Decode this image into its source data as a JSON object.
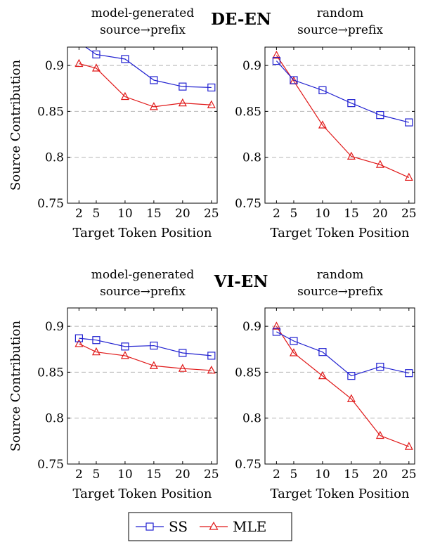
{
  "sections": [
    {
      "title": "DE-EN",
      "left_subtitle": [
        "model-generated",
        "source→prefix"
      ],
      "right_subtitle": [
        "random",
        "source→prefix"
      ]
    },
    {
      "title": "VI-EN",
      "left_subtitle": [
        "model-generated",
        "source→prefix"
      ],
      "right_subtitle": [
        "random",
        "source→prefix"
      ]
    }
  ],
  "legend": {
    "entries": [
      {
        "label": "SS",
        "color": "#2020d0",
        "marker": "square"
      },
      {
        "label": "MLE",
        "color": "#e01818",
        "marker": "triangle"
      }
    ]
  },
  "chart_data": [
    {
      "type": "line",
      "section": "DE-EN",
      "subtitle": "model-generated source→prefix",
      "xlabel": "Target Token Position",
      "ylabel": "Source Contribution",
      "x": [
        2,
        5,
        10,
        15,
        20,
        25
      ],
      "ylim": [
        0.75,
        0.92
      ],
      "xticks": [
        "2",
        "5",
        "10",
        "15",
        "20",
        "25"
      ],
      "yticks": [
        "0.75",
        "0.8",
        "0.85",
        "0.9"
      ],
      "grid": "horizontal dashed",
      "series": [
        {
          "name": "SS",
          "color": "#2020d0",
          "marker": "square",
          "values": [
            0.925,
            0.912,
            0.907,
            0.884,
            0.877,
            0.876
          ]
        },
        {
          "name": "MLE",
          "color": "#e01818",
          "marker": "triangle",
          "values": [
            0.902,
            0.897,
            0.866,
            0.855,
            0.859,
            0.857
          ]
        }
      ]
    },
    {
      "type": "line",
      "section": "DE-EN",
      "subtitle": "random source→prefix",
      "xlabel": "Target Token Position",
      "ylabel": "",
      "x": [
        2,
        5,
        10,
        15,
        20,
        25
      ],
      "ylim": [
        0.75,
        0.92
      ],
      "xticks": [
        "2",
        "5",
        "10",
        "15",
        "20",
        "25"
      ],
      "yticks": [
        "0.75",
        "0.8",
        "0.85",
        "0.9"
      ],
      "grid": "horizontal dashed",
      "series": [
        {
          "name": "SS",
          "color": "#2020d0",
          "marker": "square",
          "values": [
            0.905,
            0.884,
            0.873,
            0.859,
            0.846,
            0.838
          ]
        },
        {
          "name": "MLE",
          "color": "#e01818",
          "marker": "triangle",
          "values": [
            0.911,
            0.883,
            0.835,
            0.801,
            0.792,
            0.778
          ]
        }
      ]
    },
    {
      "type": "line",
      "section": "VI-EN",
      "subtitle": "model-generated source→prefix",
      "xlabel": "Target Token Position",
      "ylabel": "Source Contribution",
      "x": [
        2,
        5,
        10,
        15,
        20,
        25
      ],
      "ylim": [
        0.75,
        0.92
      ],
      "xticks": [
        "2",
        "5",
        "10",
        "15",
        "20",
        "25"
      ],
      "yticks": [
        "0.75",
        "0.8",
        "0.85",
        "0.9"
      ],
      "grid": "horizontal dashed",
      "series": [
        {
          "name": "SS",
          "color": "#2020d0",
          "marker": "square",
          "values": [
            0.887,
            0.885,
            0.878,
            0.879,
            0.871,
            0.868
          ]
        },
        {
          "name": "MLE",
          "color": "#e01818",
          "marker": "triangle",
          "values": [
            0.881,
            0.872,
            0.868,
            0.857,
            0.854,
            0.852
          ]
        }
      ]
    },
    {
      "type": "line",
      "section": "VI-EN",
      "subtitle": "random source→prefix",
      "xlabel": "Target Token Position",
      "ylabel": "",
      "x": [
        2,
        5,
        10,
        15,
        20,
        25
      ],
      "ylim": [
        0.75,
        0.92
      ],
      "xticks": [
        "2",
        "5",
        "10",
        "15",
        "20",
        "25"
      ],
      "yticks": [
        "0.75",
        "0.8",
        "0.85",
        "0.9"
      ],
      "grid": "horizontal dashed",
      "series": [
        {
          "name": "SS",
          "color": "#2020d0",
          "marker": "square",
          "values": [
            0.894,
            0.884,
            0.872,
            0.846,
            0.856,
            0.849
          ]
        },
        {
          "name": "MLE",
          "color": "#e01818",
          "marker": "triangle",
          "values": [
            0.9,
            0.871,
            0.846,
            0.821,
            0.781,
            0.769
          ]
        }
      ]
    }
  ]
}
